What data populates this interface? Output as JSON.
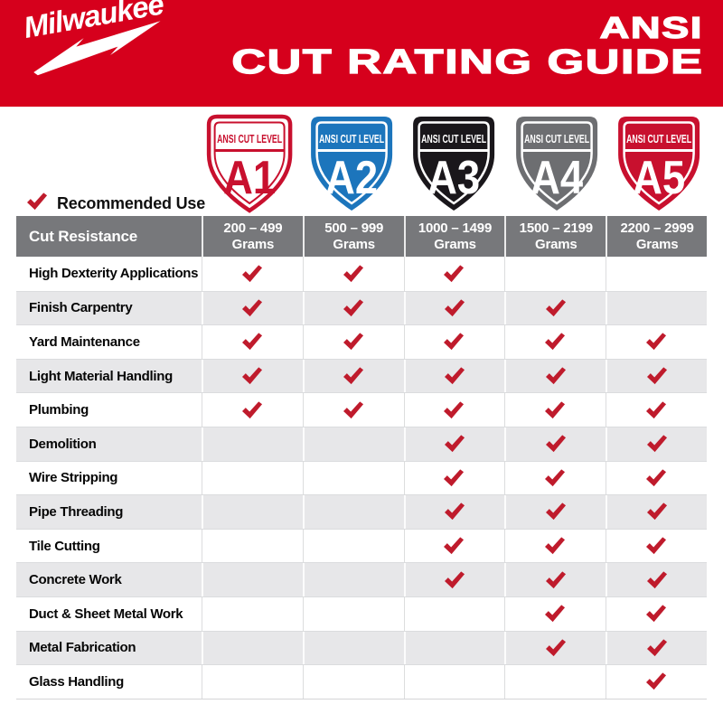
{
  "header": {
    "logo": {
      "text": "Milwaukee",
      "mark": "®"
    },
    "title_line1": "ANSI",
    "title_line2": "CUT RATING GUIDE"
  },
  "legend": {
    "label": "Recommended Use"
  },
  "colors": {
    "header_red": "#D6001C",
    "check_red": "#BF1B2C",
    "thead_gray": "#77787B",
    "row_alt": "#E7E7E9"
  },
  "cut_levels": [
    {
      "level": "A1",
      "band_label": "ANSI CUT LEVEL",
      "grams_range": "200 – 499",
      "grams_unit": "Grams",
      "color": "#C8102E",
      "style": "outline"
    },
    {
      "level": "A2",
      "band_label": "ANSI CUT LEVEL",
      "grams_range": "500 – 999",
      "grams_unit": "Grams",
      "color": "#1C75BC",
      "style": "solid"
    },
    {
      "level": "A3",
      "band_label": "ANSI CUT LEVEL",
      "grams_range": "1000 – 1499",
      "grams_unit": "Grams",
      "color": "#1A171B",
      "style": "solid"
    },
    {
      "level": "A4",
      "band_label": "ANSI CUT LEVEL",
      "grams_range": "1500 – 2199",
      "grams_unit": "Grams",
      "color": "#6D6E71",
      "style": "solid"
    },
    {
      "level": "A5",
      "band_label": "ANSI CUT LEVEL",
      "grams_range": "2200 – 2999",
      "grams_unit": "Grams",
      "color": "#C8102E",
      "style": "solid"
    }
  ],
  "table": {
    "corner_header": "Cut Resistance"
  },
  "chart_data": {
    "type": "table",
    "title": "ANSI CUT RATING GUIDE",
    "columns": [
      "Cut Resistance",
      "200 – 499 Grams",
      "500 – 999 Grams",
      "1000 – 1499 Grams",
      "1500 – 2199 Grams",
      "2200 – 2999 Grams"
    ],
    "cut_levels": [
      "A1",
      "A2",
      "A3",
      "A4",
      "A5"
    ],
    "rows": [
      {
        "label": "High Dexterity Applications",
        "recommended": [
          1,
          1,
          1,
          0,
          0
        ]
      },
      {
        "label": "Finish Carpentry",
        "recommended": [
          1,
          1,
          1,
          1,
          0
        ]
      },
      {
        "label": "Yard Maintenance",
        "recommended": [
          1,
          1,
          1,
          1,
          1
        ]
      },
      {
        "label": "Light Material Handling",
        "recommended": [
          1,
          1,
          1,
          1,
          1
        ]
      },
      {
        "label": "Plumbing",
        "recommended": [
          1,
          1,
          1,
          1,
          1
        ]
      },
      {
        "label": "Demolition",
        "recommended": [
          0,
          0,
          1,
          1,
          1
        ]
      },
      {
        "label": "Wire Stripping",
        "recommended": [
          0,
          0,
          1,
          1,
          1
        ]
      },
      {
        "label": "Pipe Threading",
        "recommended": [
          0,
          0,
          1,
          1,
          1
        ]
      },
      {
        "label": "Tile Cutting",
        "recommended": [
          0,
          0,
          1,
          1,
          1
        ]
      },
      {
        "label": "Concrete Work",
        "recommended": [
          0,
          0,
          1,
          1,
          1
        ]
      },
      {
        "label": "Duct & Sheet Metal Work",
        "recommended": [
          0,
          0,
          0,
          1,
          1
        ]
      },
      {
        "label": "Metal Fabrication",
        "recommended": [
          0,
          0,
          0,
          1,
          1
        ]
      },
      {
        "label": "Glass Handling",
        "recommended": [
          0,
          0,
          0,
          0,
          1
        ]
      }
    ]
  }
}
